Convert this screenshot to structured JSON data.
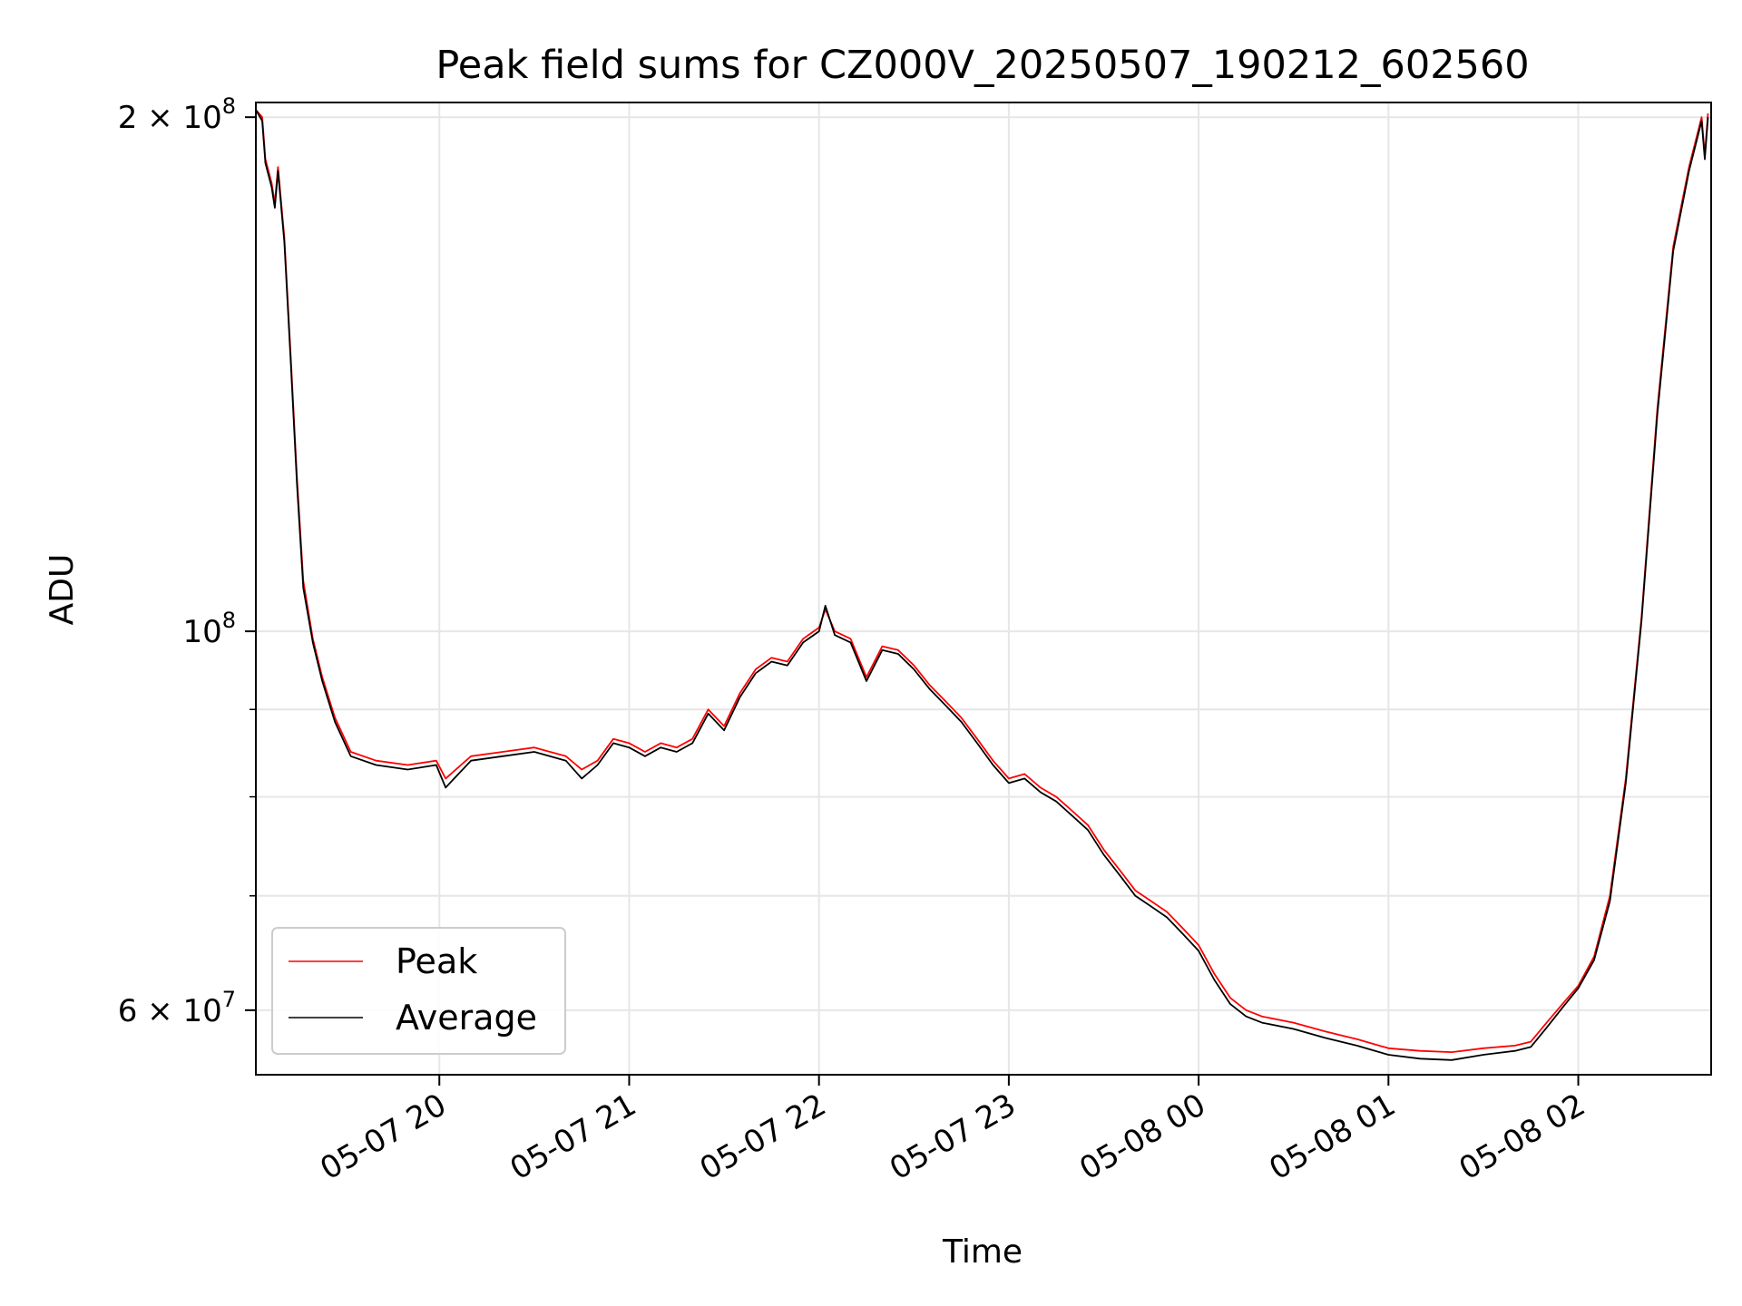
{
  "chart_data": {
    "type": "line",
    "title": "Peak field sums for CZ000V_20250507_190212_602560",
    "xlabel": "Time",
    "ylabel": "ADU",
    "y_scale": "log",
    "ylim": [
      55000000,
      204000000
    ],
    "y_major_ticks": [
      {
        "value": 200000000,
        "mantissa": "2 × 10",
        "exponent": "8"
      },
      {
        "value": 100000000,
        "mantissa": "10",
        "exponent": "8"
      },
      {
        "value": 60000000,
        "mantissa": "6 × 10",
        "exponent": "7"
      }
    ],
    "y_minor_gridlines": [
      70000000,
      80000000,
      90000000
    ],
    "x_range": [
      "2025-05-07 19:02",
      "2025-05-08 02:42"
    ],
    "x_ticks": [
      {
        "time": "2025-05-07 20:00",
        "label": "05-07 20"
      },
      {
        "time": "2025-05-07 21:00",
        "label": "05-07 21"
      },
      {
        "time": "2025-05-07 22:00",
        "label": "05-07 22"
      },
      {
        "time": "2025-05-07 23:00",
        "label": "05-07 23"
      },
      {
        "time": "2025-05-08 00:00",
        "label": "05-08 00"
      },
      {
        "time": "2025-05-08 01:00",
        "label": "05-08 01"
      },
      {
        "time": "2025-05-08 02:00",
        "label": "05-08 02"
      }
    ],
    "grid": true,
    "legend_position": "bottom-left",
    "series": [
      {
        "name": "Peak",
        "color": "#ff0000",
        "points": [
          [
            "2025-05-07 19:02",
            202000000
          ],
          [
            "2025-05-07 19:04",
            200000000
          ],
          [
            "2025-05-07 19:05",
            189000000
          ],
          [
            "2025-05-07 19:07",
            183000000
          ],
          [
            "2025-05-07 19:08",
            178000000
          ],
          [
            "2025-05-07 19:09",
            187000000
          ],
          [
            "2025-05-07 19:11",
            170000000
          ],
          [
            "2025-05-07 19:13",
            145000000
          ],
          [
            "2025-05-07 19:15",
            123000000
          ],
          [
            "2025-05-07 19:17",
            107000000
          ],
          [
            "2025-05-07 19:20",
            99000000
          ],
          [
            "2025-05-07 19:23",
            94000000
          ],
          [
            "2025-05-07 19:27",
            89000000
          ],
          [
            "2025-05-07 19:32",
            85000000
          ],
          [
            "2025-05-07 19:40",
            84000000
          ],
          [
            "2025-05-07 19:50",
            83500000
          ],
          [
            "2025-05-07 19:59",
            84000000
          ],
          [
            "2025-05-07 20:02",
            82000000
          ],
          [
            "2025-05-07 20:10",
            84500000
          ],
          [
            "2025-05-07 20:20",
            85000000
          ],
          [
            "2025-05-07 20:30",
            85500000
          ],
          [
            "2025-05-07 20:40",
            84500000
          ],
          [
            "2025-05-07 20:45",
            83000000
          ],
          [
            "2025-05-07 20:50",
            84000000
          ],
          [
            "2025-05-07 20:55",
            86500000
          ],
          [
            "2025-05-07 21:00",
            86000000
          ],
          [
            "2025-05-07 21:05",
            85000000
          ],
          [
            "2025-05-07 21:10",
            86000000
          ],
          [
            "2025-05-07 21:15",
            85500000
          ],
          [
            "2025-05-07 21:20",
            86500000
          ],
          [
            "2025-05-07 21:25",
            90000000
          ],
          [
            "2025-05-07 21:30",
            88000000
          ],
          [
            "2025-05-07 21:35",
            92000000
          ],
          [
            "2025-05-07 21:40",
            95000000
          ],
          [
            "2025-05-07 21:45",
            96500000
          ],
          [
            "2025-05-07 21:50",
            96000000
          ],
          [
            "2025-05-07 21:55",
            99000000
          ],
          [
            "2025-05-07 22:00",
            100500000
          ],
          [
            "2025-05-07 22:02",
            103000000
          ],
          [
            "2025-05-07 22:05",
            100000000
          ],
          [
            "2025-05-07 22:10",
            99000000
          ],
          [
            "2025-05-07 22:15",
            94000000
          ],
          [
            "2025-05-07 22:20",
            98000000
          ],
          [
            "2025-05-07 22:25",
            97500000
          ],
          [
            "2025-05-07 22:30",
            95500000
          ],
          [
            "2025-05-07 22:35",
            93000000
          ],
          [
            "2025-05-07 22:40",
            91000000
          ],
          [
            "2025-05-07 22:45",
            89000000
          ],
          [
            "2025-05-07 22:50",
            86500000
          ],
          [
            "2025-05-07 22:55",
            84000000
          ],
          [
            "2025-05-07 23:00",
            82000000
          ],
          [
            "2025-05-07 23:05",
            82500000
          ],
          [
            "2025-05-07 23:10",
            81000000
          ],
          [
            "2025-05-07 23:15",
            80000000
          ],
          [
            "2025-05-07 23:20",
            78500000
          ],
          [
            "2025-05-07 23:25",
            77000000
          ],
          [
            "2025-05-07 23:30",
            74500000
          ],
          [
            "2025-05-07 23:35",
            72500000
          ],
          [
            "2025-05-07 23:40",
            70500000
          ],
          [
            "2025-05-07 23:45",
            69500000
          ],
          [
            "2025-05-07 23:50",
            68500000
          ],
          [
            "2025-05-07 23:55",
            67000000
          ],
          [
            "2025-05-08 00:00",
            65500000
          ],
          [
            "2025-05-08 00:05",
            63000000
          ],
          [
            "2025-05-08 00:10",
            61000000
          ],
          [
            "2025-05-08 00:15",
            60000000
          ],
          [
            "2025-05-08 00:20",
            59500000
          ],
          [
            "2025-05-08 00:30",
            59000000
          ],
          [
            "2025-05-08 00:40",
            58300000
          ],
          [
            "2025-05-08 00:50",
            57700000
          ],
          [
            "2025-05-08 01:00",
            57000000
          ],
          [
            "2025-05-08 01:10",
            56800000
          ],
          [
            "2025-05-08 01:20",
            56700000
          ],
          [
            "2025-05-08 01:30",
            57000000
          ],
          [
            "2025-05-08 01:40",
            57200000
          ],
          [
            "2025-05-08 01:45",
            57500000
          ],
          [
            "2025-05-08 01:50",
            59000000
          ],
          [
            "2025-05-08 01:55",
            60500000
          ],
          [
            "2025-05-08 02:00",
            62000000
          ],
          [
            "2025-05-08 02:05",
            64500000
          ],
          [
            "2025-05-08 02:10",
            70000000
          ],
          [
            "2025-05-08 02:15",
            82000000
          ],
          [
            "2025-05-08 02:20",
            102000000
          ],
          [
            "2025-05-08 02:25",
            135000000
          ],
          [
            "2025-05-08 02:30",
            168000000
          ],
          [
            "2025-05-08 02:35",
            187000000
          ],
          [
            "2025-05-08 02:39",
            200000000
          ],
          [
            "2025-05-08 02:40",
            190000000
          ],
          [
            "2025-05-08 02:41",
            201000000
          ]
        ]
      },
      {
        "name": "Average",
        "color": "#000000",
        "points": [
          [
            "2025-05-07 19:02",
            202000000
          ],
          [
            "2025-05-07 19:04",
            199000000
          ],
          [
            "2025-05-07 19:05",
            188000000
          ],
          [
            "2025-05-07 19:07",
            182000000
          ],
          [
            "2025-05-07 19:08",
            177000000
          ],
          [
            "2025-05-07 19:09",
            186000000
          ],
          [
            "2025-05-07 19:11",
            169000000
          ],
          [
            "2025-05-07 19:13",
            144000000
          ],
          [
            "2025-05-07 19:15",
            122000000
          ],
          [
            "2025-05-07 19:17",
            106000000
          ],
          [
            "2025-05-07 19:20",
            98500000
          ],
          [
            "2025-05-07 19:23",
            93500000
          ],
          [
            "2025-05-07 19:27",
            88500000
          ],
          [
            "2025-05-07 19:32",
            84500000
          ],
          [
            "2025-05-07 19:40",
            83500000
          ],
          [
            "2025-05-07 19:50",
            83000000
          ],
          [
            "2025-05-07 19:59",
            83500000
          ],
          [
            "2025-05-07 20:02",
            81000000
          ],
          [
            "2025-05-07 20:10",
            84000000
          ],
          [
            "2025-05-07 20:20",
            84500000
          ],
          [
            "2025-05-07 20:30",
            85000000
          ],
          [
            "2025-05-07 20:40",
            84000000
          ],
          [
            "2025-05-07 20:45",
            82000000
          ],
          [
            "2025-05-07 20:50",
            83500000
          ],
          [
            "2025-05-07 20:55",
            86000000
          ],
          [
            "2025-05-07 21:00",
            85500000
          ],
          [
            "2025-05-07 21:05",
            84500000
          ],
          [
            "2025-05-07 21:10",
            85500000
          ],
          [
            "2025-05-07 21:15",
            85000000
          ],
          [
            "2025-05-07 21:20",
            86000000
          ],
          [
            "2025-05-07 21:25",
            89500000
          ],
          [
            "2025-05-07 21:30",
            87500000
          ],
          [
            "2025-05-07 21:35",
            91500000
          ],
          [
            "2025-05-07 21:40",
            94500000
          ],
          [
            "2025-05-07 21:45",
            96000000
          ],
          [
            "2025-05-07 21:50",
            95500000
          ],
          [
            "2025-05-07 21:55",
            98500000
          ],
          [
            "2025-05-07 22:00",
            100000000
          ],
          [
            "2025-05-07 22:02",
            103500000
          ],
          [
            "2025-05-07 22:05",
            99500000
          ],
          [
            "2025-05-07 22:10",
            98500000
          ],
          [
            "2025-05-07 22:15",
            93500000
          ],
          [
            "2025-05-07 22:20",
            97500000
          ],
          [
            "2025-05-07 22:25",
            97000000
          ],
          [
            "2025-05-07 22:30",
            95000000
          ],
          [
            "2025-05-07 22:35",
            92500000
          ],
          [
            "2025-05-07 22:40",
            90500000
          ],
          [
            "2025-05-07 22:45",
            88500000
          ],
          [
            "2025-05-07 22:50",
            86000000
          ],
          [
            "2025-05-07 22:55",
            83500000
          ],
          [
            "2025-05-07 23:00",
            81500000
          ],
          [
            "2025-05-07 23:05",
            82000000
          ],
          [
            "2025-05-07 23:10",
            80500000
          ],
          [
            "2025-05-07 23:15",
            79500000
          ],
          [
            "2025-05-07 23:20",
            78000000
          ],
          [
            "2025-05-07 23:25",
            76500000
          ],
          [
            "2025-05-07 23:30",
            74000000
          ],
          [
            "2025-05-07 23:35",
            72000000
          ],
          [
            "2025-05-07 23:40",
            70000000
          ],
          [
            "2025-05-07 23:45",
            69000000
          ],
          [
            "2025-05-07 23:50",
            68000000
          ],
          [
            "2025-05-07 23:55",
            66500000
          ],
          [
            "2025-05-08 00:00",
            65000000
          ],
          [
            "2025-05-08 00:05",
            62500000
          ],
          [
            "2025-05-08 00:10",
            60500000
          ],
          [
            "2025-05-08 00:15",
            59500000
          ],
          [
            "2025-05-08 00:20",
            59000000
          ],
          [
            "2025-05-08 00:30",
            58500000
          ],
          [
            "2025-05-08 00:40",
            57800000
          ],
          [
            "2025-05-08 00:50",
            57200000
          ],
          [
            "2025-05-08 01:00",
            56500000
          ],
          [
            "2025-05-08 01:10",
            56200000
          ],
          [
            "2025-05-08 01:20",
            56100000
          ],
          [
            "2025-05-08 01:30",
            56500000
          ],
          [
            "2025-05-08 01:40",
            56800000
          ],
          [
            "2025-05-08 01:45",
            57100000
          ],
          [
            "2025-05-08 01:50",
            58600000
          ],
          [
            "2025-05-08 01:55",
            60200000
          ],
          [
            "2025-05-08 02:00",
            61800000
          ],
          [
            "2025-05-08 02:05",
            64200000
          ],
          [
            "2025-05-08 02:10",
            69500000
          ],
          [
            "2025-05-08 02:15",
            81500000
          ],
          [
            "2025-05-08 02:20",
            101500000
          ],
          [
            "2025-05-08 02:25",
            134000000
          ],
          [
            "2025-05-08 02:30",
            167000000
          ],
          [
            "2025-05-08 02:35",
            186000000
          ],
          [
            "2025-05-08 02:39",
            199000000
          ],
          [
            "2025-05-08 02:40",
            189000000
          ],
          [
            "2025-05-08 02:41",
            200000000
          ]
        ]
      }
    ]
  }
}
